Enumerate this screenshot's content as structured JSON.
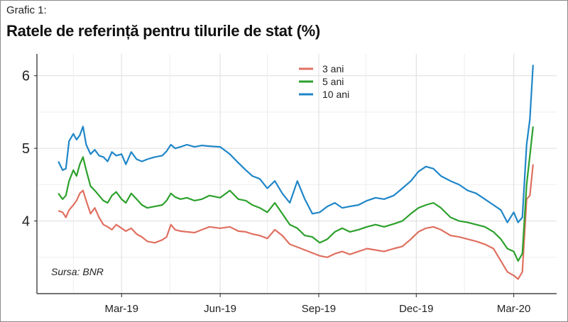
{
  "figure": {
    "pretitle": "Grafic 1:",
    "title": "Ratele de referință pentru tilurile de stat (%)",
    "source": "Sursa: BNR"
  },
  "chart_data": {
    "type": "line",
    "x_ticks": [
      "Mar-19",
      "Jun-19",
      "Sep-19",
      "Dec-19",
      "Mar-20"
    ],
    "y_ticks": [
      4,
      5,
      6
    ],
    "ylim": [
      3,
      6.3
    ],
    "grid": true,
    "legend_position": "top-center",
    "series": [
      {
        "name": "3 ani",
        "color": "#e07060",
        "values": [
          [
            "2019-01-01",
            4.14
          ],
          [
            "2019-01-05",
            4.12
          ],
          [
            "2019-01-08",
            4.05
          ],
          [
            "2019-01-11",
            4.15
          ],
          [
            "2019-01-15",
            4.22
          ],
          [
            "2019-01-18",
            4.28
          ],
          [
            "2019-01-21",
            4.38
          ],
          [
            "2019-01-24",
            4.42
          ],
          [
            "2019-01-27",
            4.28
          ],
          [
            "2019-01-31",
            4.1
          ],
          [
            "2019-02-04",
            4.18
          ],
          [
            "2019-02-08",
            4.05
          ],
          [
            "2019-02-12",
            3.95
          ],
          [
            "2019-02-16",
            3.92
          ],
          [
            "2019-02-20",
            3.88
          ],
          [
            "2019-02-24",
            3.95
          ],
          [
            "2019-03-01",
            3.9
          ],
          [
            "2019-03-05",
            3.86
          ],
          [
            "2019-03-10",
            3.9
          ],
          [
            "2019-03-15",
            3.82
          ],
          [
            "2019-03-20",
            3.78
          ],
          [
            "2019-03-25",
            3.72
          ],
          [
            "2019-04-01",
            3.7
          ],
          [
            "2019-04-08",
            3.74
          ],
          [
            "2019-04-12",
            3.78
          ],
          [
            "2019-04-16",
            3.95
          ],
          [
            "2019-04-20",
            3.88
          ],
          [
            "2019-04-25",
            3.86
          ],
          [
            "2019-05-01",
            3.85
          ],
          [
            "2019-05-08",
            3.84
          ],
          [
            "2019-05-15",
            3.88
          ],
          [
            "2019-05-22",
            3.92
          ],
          [
            "2019-06-01",
            3.9
          ],
          [
            "2019-06-10",
            3.92
          ],
          [
            "2019-06-18",
            3.86
          ],
          [
            "2019-06-25",
            3.85
          ],
          [
            "2019-07-01",
            3.82
          ],
          [
            "2019-07-08",
            3.8
          ],
          [
            "2019-07-15",
            3.76
          ],
          [
            "2019-07-22",
            3.88
          ],
          [
            "2019-07-29",
            3.8
          ],
          [
            "2019-08-05",
            3.68
          ],
          [
            "2019-08-12",
            3.64
          ],
          [
            "2019-08-19",
            3.6
          ],
          [
            "2019-08-26",
            3.56
          ],
          [
            "2019-09-02",
            3.52
          ],
          [
            "2019-09-09",
            3.5
          ],
          [
            "2019-09-16",
            3.55
          ],
          [
            "2019-09-23",
            3.58
          ],
          [
            "2019-09-30",
            3.54
          ],
          [
            "2019-10-08",
            3.58
          ],
          [
            "2019-10-16",
            3.62
          ],
          [
            "2019-10-24",
            3.6
          ],
          [
            "2019-11-01",
            3.58
          ],
          [
            "2019-11-10",
            3.62
          ],
          [
            "2019-11-18",
            3.65
          ],
          [
            "2019-11-26",
            3.75
          ],
          [
            "2019-12-03",
            3.85
          ],
          [
            "2019-12-10",
            3.9
          ],
          [
            "2019-12-17",
            3.92
          ],
          [
            "2019-12-24",
            3.88
          ],
          [
            "2020-01-02",
            3.8
          ],
          [
            "2020-01-10",
            3.78
          ],
          [
            "2020-01-18",
            3.75
          ],
          [
            "2020-01-26",
            3.72
          ],
          [
            "2020-02-03",
            3.68
          ],
          [
            "2020-02-11",
            3.62
          ],
          [
            "2020-02-18",
            3.45
          ],
          [
            "2020-02-24",
            3.3
          ],
          [
            "2020-03-01",
            3.25
          ],
          [
            "2020-03-05",
            3.2
          ],
          [
            "2020-03-09",
            3.3
          ],
          [
            "2020-03-13",
            4.3
          ],
          [
            "2020-03-16",
            4.35
          ],
          [
            "2020-03-19",
            4.78
          ]
        ]
      },
      {
        "name": "5 ani",
        "color": "#2ca02c",
        "values": [
          [
            "2019-01-01",
            4.38
          ],
          [
            "2019-01-05",
            4.3
          ],
          [
            "2019-01-08",
            4.35
          ],
          [
            "2019-01-11",
            4.55
          ],
          [
            "2019-01-15",
            4.7
          ],
          [
            "2019-01-18",
            4.62
          ],
          [
            "2019-01-21",
            4.78
          ],
          [
            "2019-01-24",
            4.88
          ],
          [
            "2019-01-27",
            4.7
          ],
          [
            "2019-01-31",
            4.48
          ],
          [
            "2019-02-04",
            4.42
          ],
          [
            "2019-02-08",
            4.35
          ],
          [
            "2019-02-12",
            4.28
          ],
          [
            "2019-02-16",
            4.25
          ],
          [
            "2019-02-20",
            4.35
          ],
          [
            "2019-02-24",
            4.4
          ],
          [
            "2019-03-01",
            4.3
          ],
          [
            "2019-03-05",
            4.25
          ],
          [
            "2019-03-10",
            4.38
          ],
          [
            "2019-03-15",
            4.3
          ],
          [
            "2019-03-20",
            4.22
          ],
          [
            "2019-03-25",
            4.18
          ],
          [
            "2019-04-01",
            4.2
          ],
          [
            "2019-04-08",
            4.22
          ],
          [
            "2019-04-12",
            4.28
          ],
          [
            "2019-04-16",
            4.38
          ],
          [
            "2019-04-20",
            4.33
          ],
          [
            "2019-04-25",
            4.3
          ],
          [
            "2019-05-01",
            4.32
          ],
          [
            "2019-05-08",
            4.28
          ],
          [
            "2019-05-15",
            4.3
          ],
          [
            "2019-05-22",
            4.35
          ],
          [
            "2019-06-01",
            4.32
          ],
          [
            "2019-06-10",
            4.42
          ],
          [
            "2019-06-18",
            4.3
          ],
          [
            "2019-06-25",
            4.28
          ],
          [
            "2019-07-01",
            4.22
          ],
          [
            "2019-07-08",
            4.18
          ],
          [
            "2019-07-15",
            4.12
          ],
          [
            "2019-07-22",
            4.25
          ],
          [
            "2019-07-29",
            4.1
          ],
          [
            "2019-08-05",
            3.95
          ],
          [
            "2019-08-12",
            3.9
          ],
          [
            "2019-08-19",
            3.8
          ],
          [
            "2019-08-26",
            3.78
          ],
          [
            "2019-09-02",
            3.7
          ],
          [
            "2019-09-09",
            3.75
          ],
          [
            "2019-09-16",
            3.85
          ],
          [
            "2019-09-23",
            3.9
          ],
          [
            "2019-09-30",
            3.85
          ],
          [
            "2019-10-08",
            3.88
          ],
          [
            "2019-10-16",
            3.92
          ],
          [
            "2019-10-24",
            3.95
          ],
          [
            "2019-11-01",
            3.92
          ],
          [
            "2019-11-10",
            3.96
          ],
          [
            "2019-11-18",
            4.0
          ],
          [
            "2019-11-26",
            4.1
          ],
          [
            "2019-12-03",
            4.18
          ],
          [
            "2019-12-10",
            4.22
          ],
          [
            "2019-12-17",
            4.25
          ],
          [
            "2019-12-24",
            4.18
          ],
          [
            "2020-01-02",
            4.05
          ],
          [
            "2020-01-10",
            4.0
          ],
          [
            "2020-01-18",
            3.98
          ],
          [
            "2020-01-26",
            3.95
          ],
          [
            "2020-02-03",
            3.92
          ],
          [
            "2020-02-11",
            3.85
          ],
          [
            "2020-02-18",
            3.75
          ],
          [
            "2020-02-24",
            3.62
          ],
          [
            "2020-03-01",
            3.58
          ],
          [
            "2020-03-05",
            3.45
          ],
          [
            "2020-03-09",
            3.55
          ],
          [
            "2020-03-13",
            4.5
          ],
          [
            "2020-03-16",
            4.9
          ],
          [
            "2020-03-19",
            5.3
          ]
        ]
      },
      {
        "name": "10 ani",
        "color": "#1f86c8",
        "values": [
          [
            "2019-01-01",
            4.82
          ],
          [
            "2019-01-05",
            4.7
          ],
          [
            "2019-01-08",
            4.72
          ],
          [
            "2019-01-11",
            5.1
          ],
          [
            "2019-01-15",
            5.2
          ],
          [
            "2019-01-18",
            5.12
          ],
          [
            "2019-01-21",
            5.18
          ],
          [
            "2019-01-24",
            5.3
          ],
          [
            "2019-01-27",
            5.05
          ],
          [
            "2019-01-31",
            4.92
          ],
          [
            "2019-02-04",
            4.98
          ],
          [
            "2019-02-08",
            4.9
          ],
          [
            "2019-02-12",
            4.88
          ],
          [
            "2019-02-16",
            4.82
          ],
          [
            "2019-02-20",
            4.95
          ],
          [
            "2019-02-24",
            4.9
          ],
          [
            "2019-03-01",
            4.92
          ],
          [
            "2019-03-05",
            4.78
          ],
          [
            "2019-03-10",
            4.95
          ],
          [
            "2019-03-15",
            4.85
          ],
          [
            "2019-03-20",
            4.82
          ],
          [
            "2019-03-25",
            4.85
          ],
          [
            "2019-04-01",
            4.88
          ],
          [
            "2019-04-08",
            4.9
          ],
          [
            "2019-04-12",
            4.96
          ],
          [
            "2019-04-16",
            5.05
          ],
          [
            "2019-04-20",
            5.0
          ],
          [
            "2019-04-25",
            5.02
          ],
          [
            "2019-05-01",
            5.05
          ],
          [
            "2019-05-08",
            5.02
          ],
          [
            "2019-05-15",
            5.04
          ],
          [
            "2019-05-22",
            5.03
          ],
          [
            "2019-06-01",
            5.02
          ],
          [
            "2019-06-10",
            4.92
          ],
          [
            "2019-06-18",
            4.8
          ],
          [
            "2019-06-25",
            4.7
          ],
          [
            "2019-07-01",
            4.62
          ],
          [
            "2019-07-08",
            4.58
          ],
          [
            "2019-07-15",
            4.45
          ],
          [
            "2019-07-22",
            4.55
          ],
          [
            "2019-07-29",
            4.38
          ],
          [
            "2019-08-05",
            4.25
          ],
          [
            "2019-08-12",
            4.55
          ],
          [
            "2019-08-19",
            4.3
          ],
          [
            "2019-08-26",
            4.1
          ],
          [
            "2019-09-02",
            4.12
          ],
          [
            "2019-09-09",
            4.2
          ],
          [
            "2019-09-16",
            4.25
          ],
          [
            "2019-09-23",
            4.18
          ],
          [
            "2019-09-30",
            4.2
          ],
          [
            "2019-10-08",
            4.22
          ],
          [
            "2019-10-16",
            4.28
          ],
          [
            "2019-10-24",
            4.32
          ],
          [
            "2019-11-01",
            4.3
          ],
          [
            "2019-11-10",
            4.35
          ],
          [
            "2019-11-18",
            4.45
          ],
          [
            "2019-11-26",
            4.55
          ],
          [
            "2019-12-03",
            4.68
          ],
          [
            "2019-12-10",
            4.75
          ],
          [
            "2019-12-17",
            4.72
          ],
          [
            "2019-12-24",
            4.62
          ],
          [
            "2020-01-02",
            4.55
          ],
          [
            "2020-01-10",
            4.5
          ],
          [
            "2020-01-18",
            4.42
          ],
          [
            "2020-01-26",
            4.38
          ],
          [
            "2020-02-03",
            4.3
          ],
          [
            "2020-02-11",
            4.22
          ],
          [
            "2020-02-18",
            4.15
          ],
          [
            "2020-02-24",
            3.98
          ],
          [
            "2020-03-01",
            4.12
          ],
          [
            "2020-03-05",
            3.98
          ],
          [
            "2020-03-09",
            4.05
          ],
          [
            "2020-03-13",
            5.05
          ],
          [
            "2020-03-16",
            5.4
          ],
          [
            "2020-03-19",
            6.15
          ]
        ]
      }
    ]
  }
}
